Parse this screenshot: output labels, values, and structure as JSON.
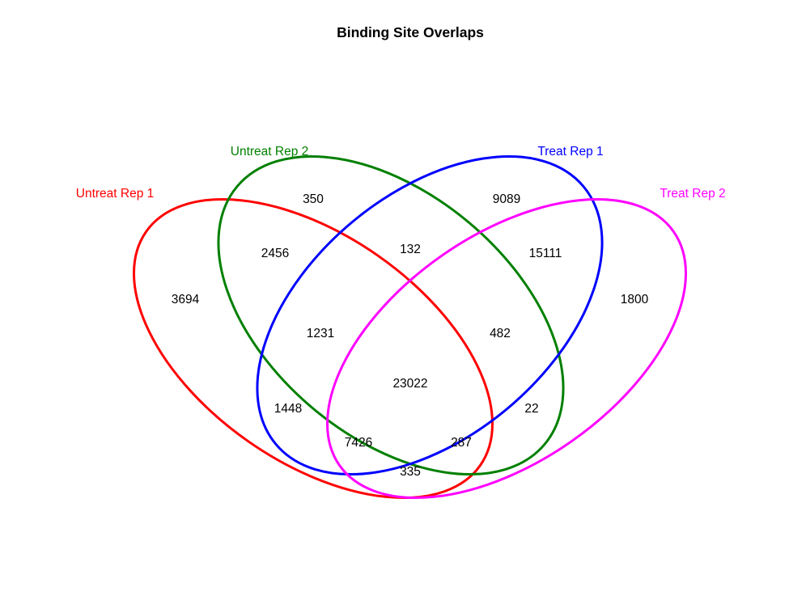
{
  "title": "Binding Site Overlaps",
  "sets": {
    "untreat_rep1": {
      "label": "Untreat Rep 1",
      "color": "#ff0000"
    },
    "untreat_rep2": {
      "label": "Untreat Rep 2",
      "color": "#008000"
    },
    "treat_rep1": {
      "label": "Treat Rep 1",
      "color": "#0000ff"
    },
    "treat_rep2": {
      "label": "Treat Rep 2",
      "color": "#ff00ff"
    }
  },
  "regions": {
    "only_u1": "3694",
    "only_u2": "350",
    "only_t1": "9089",
    "only_t2": "1800",
    "u1_u2": "2456",
    "u2_t1": "132",
    "t1_t2": "15111",
    "u1_u2_t1": "1231",
    "u2_t1_t2": "482",
    "all_four": "23022",
    "u1_t1": "1448",
    "u2_t2": "22",
    "u1_t1_t2": "7426",
    "u1_u2_t2": "287",
    "u1_t2": "335"
  }
}
